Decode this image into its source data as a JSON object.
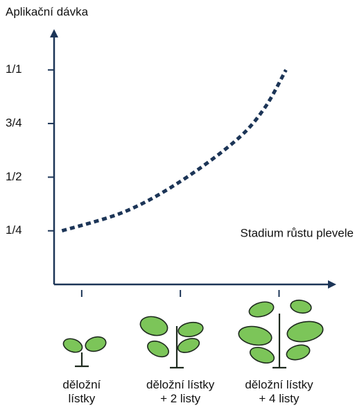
{
  "chart_data": {
    "type": "line",
    "ylabel": "Aplikační dávka",
    "xlabel": "Stadium růstu plevele",
    "xlim": [
      0.72,
      3.58
    ],
    "ylim": [
      0,
      1.19
    ],
    "xticks": [
      {
        "value": 1,
        "label": "děložní\nlístky"
      },
      {
        "value": 2,
        "label": "děložní lístky\n+ 2 listy"
      },
      {
        "value": 3,
        "label": "děložní lístky\n+ 4 listy"
      }
    ],
    "yticks": [
      {
        "value": 0.25,
        "label": "1/4"
      },
      {
        "value": 0.5,
        "label": "1/2"
      },
      {
        "value": 0.75,
        "label": "3/4"
      },
      {
        "value": 1,
        "label": "1/1"
      }
    ],
    "x": [
      0.8,
      1.44,
      2,
      2.56,
      2.85,
      3.07
    ],
    "series": [
      {
        "color": "#1c3557",
        "values": [
          0.25,
          0.34,
          0.48,
          0.67,
          0.82,
          1.0
        ]
      }
    ],
    "axis_color": "#1c3557"
  }
}
